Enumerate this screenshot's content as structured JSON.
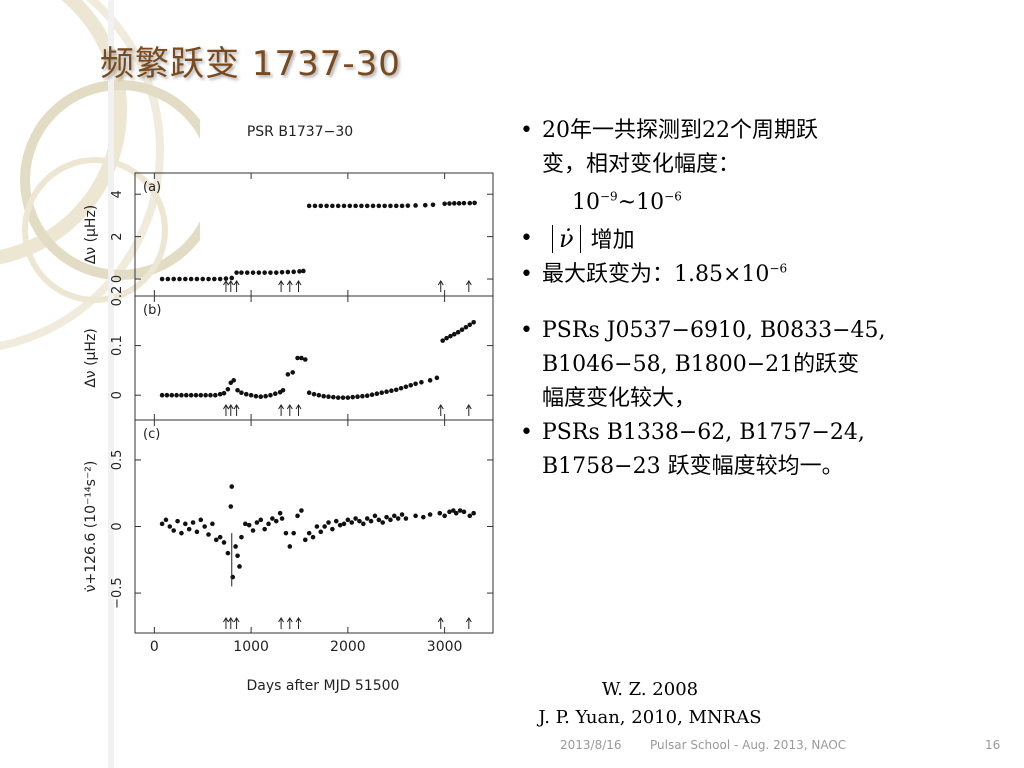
{
  "slide": {
    "title": "频繁跃变 1737-30",
    "footer_date": "2013/8/16",
    "footer_center": "Pulsar School  - Aug. 2013, NAOC",
    "page_number": "16"
  },
  "bullets": [
    {
      "text_a": "20年一共探测到22个周期跃",
      "text_b": "变，相对变化幅度："
    },
    {
      "range_base1": "10",
      "range_exp1": "−9",
      "range_sep": "~10",
      "range_exp2": "−6"
    },
    {
      "symbol": "ν̇",
      "text": "增加"
    },
    {
      "text": "最大跃变为：",
      "value": "1.85×10",
      "exp": "−6"
    },
    {
      "lines": [
        "PSRs J0537−6910, B0833−45,",
        "B1046−58, B1800−21的跃变",
        "幅度变化较大，"
      ]
    },
    {
      "lines": [
        "PSRs B1338−62, B1757−24,",
        "B1758−23 跃变幅度较均一。"
      ]
    }
  ],
  "references": [
    "W. Z. 2008",
    "J. P. Yuan, 2010, MNRAS"
  ],
  "chart_data": [
    {
      "type": "scatter",
      "title": "PSR B1737−30",
      "panel_label": "(a)",
      "xlabel": "Days after MJD 51500",
      "ylabel": "Δν (μHz)",
      "xlim": [
        -200,
        3500
      ],
      "ylim": [
        -0.8,
        5
      ],
      "xticks": [
        "0",
        "1000",
        "2000",
        "3000"
      ],
      "yticks": [
        "0",
        "2",
        "4"
      ],
      "series": [
        {
          "points": [
            [
              80,
              0
            ],
            [
              140,
              0
            ],
            [
              200,
              0
            ],
            [
              260,
              0
            ],
            [
              320,
              0
            ],
            [
              380,
              0
            ],
            [
              440,
              0
            ],
            [
              500,
              0
            ],
            [
              560,
              0
            ],
            [
              620,
              0
            ],
            [
              680,
              0
            ],
            [
              740,
              0.02
            ],
            [
              800,
              0.05
            ],
            [
              850,
              0.3
            ],
            [
              900,
              0.3
            ],
            [
              960,
              0.3
            ],
            [
              1020,
              0.3
            ],
            [
              1080,
              0.3
            ],
            [
              1140,
              0.3
            ],
            [
              1200,
              0.3
            ],
            [
              1260,
              0.3
            ],
            [
              1320,
              0.32
            ],
            [
              1380,
              0.33
            ],
            [
              1440,
              0.34
            ],
            [
              1500,
              0.36
            ],
            [
              1540,
              0.38
            ],
            [
              1600,
              3.45
            ],
            [
              1660,
              3.45
            ],
            [
              1720,
              3.45
            ],
            [
              1780,
              3.45
            ],
            [
              1840,
              3.45
            ],
            [
              1900,
              3.45
            ],
            [
              1960,
              3.45
            ],
            [
              2020,
              3.45
            ],
            [
              2080,
              3.45
            ],
            [
              2140,
              3.45
            ],
            [
              2200,
              3.45
            ],
            [
              2260,
              3.45
            ],
            [
              2320,
              3.45
            ],
            [
              2380,
              3.45
            ],
            [
              2440,
              3.45
            ],
            [
              2500,
              3.45
            ],
            [
              2560,
              3.45
            ],
            [
              2620,
              3.46
            ],
            [
              2700,
              3.47
            ],
            [
              2800,
              3.48
            ],
            [
              2880,
              3.5
            ],
            [
              3000,
              3.55
            ],
            [
              3050,
              3.56
            ],
            [
              3100,
              3.57
            ],
            [
              3150,
              3.57
            ],
            [
              3200,
              3.58
            ],
            [
              3260,
              3.58
            ],
            [
              3310,
              3.59
            ]
          ]
        }
      ],
      "glitch_markers": [
        740,
        790,
        850,
        1310,
        1400,
        1490,
        2960,
        3250
      ]
    },
    {
      "type": "scatter",
      "panel_label": "(b)",
      "ylabel": "Δν (μHz)",
      "xlim": [
        -200,
        3500
      ],
      "ylim": [
        -0.05,
        0.2
      ],
      "yticks": [
        "0",
        "0.1",
        "0.2"
      ],
      "series": [
        {
          "points": [
            [
              80,
              0
            ],
            [
              130,
              0
            ],
            [
              180,
              0
            ],
            [
              230,
              0
            ],
            [
              280,
              0
            ],
            [
              330,
              0
            ],
            [
              380,
              0
            ],
            [
              430,
              0
            ],
            [
              480,
              0
            ],
            [
              530,
              0
            ],
            [
              580,
              0
            ],
            [
              630,
              0
            ],
            [
              680,
              0.002
            ],
            [
              720,
              0.004
            ],
            [
              760,
              0.012
            ],
            [
              790,
              0.025
            ],
            [
              820,
              0.03
            ],
            [
              860,
              0.01
            ],
            [
              900,
              0.005
            ],
            [
              950,
              0.002
            ],
            [
              1000,
              0
            ],
            [
              1050,
              -0.002
            ],
            [
              1100,
              -0.003
            ],
            [
              1150,
              -0.002
            ],
            [
              1200,
              0
            ],
            [
              1250,
              0.003
            ],
            [
              1300,
              0.006
            ],
            [
              1330,
              0.01
            ],
            [
              1380,
              0.042
            ],
            [
              1430,
              0.046
            ],
            [
              1480,
              0.075
            ],
            [
              1520,
              0.075
            ],
            [
              1560,
              0.072
            ],
            [
              1600,
              0.005
            ],
            [
              1650,
              0.002
            ],
            [
              1700,
              0
            ],
            [
              1750,
              -0.002
            ],
            [
              1800,
              -0.003
            ],
            [
              1850,
              -0.004
            ],
            [
              1900,
              -0.005
            ],
            [
              1950,
              -0.005
            ],
            [
              2000,
              -0.005
            ],
            [
              2050,
              -0.004
            ],
            [
              2100,
              -0.003
            ],
            [
              2150,
              -0.002
            ],
            [
              2200,
              -0.001
            ],
            [
              2250,
              0.001
            ],
            [
              2300,
              0.003
            ],
            [
              2350,
              0.005
            ],
            [
              2400,
              0.007
            ],
            [
              2450,
              0.009
            ],
            [
              2500,
              0.011
            ],
            [
              2550,
              0.014
            ],
            [
              2600,
              0.017
            ],
            [
              2650,
              0.02
            ],
            [
              2700,
              0.023
            ],
            [
              2760,
              0.026
            ],
            [
              2850,
              0.03
            ],
            [
              2920,
              0.035
            ],
            [
              2980,
              0.11
            ],
            [
              3020,
              0.115
            ],
            [
              3060,
              0.119
            ],
            [
              3100,
              0.123
            ],
            [
              3140,
              0.127
            ],
            [
              3180,
              0.132
            ],
            [
              3220,
              0.137
            ],
            [
              3260,
              0.142
            ],
            [
              3300,
              0.147
            ]
          ]
        }
      ],
      "glitch_markers": [
        740,
        790,
        850,
        1310,
        1400,
        1490,
        2960,
        3250
      ]
    },
    {
      "type": "scatter",
      "panel_label": "(c)",
      "ylabel": "ν̇+126.6 (10⁻¹⁴s⁻²)",
      "xlim": [
        -200,
        3500
      ],
      "ylim": [
        -0.8,
        0.8
      ],
      "yticks": [
        "−0.5",
        "0",
        "0.5"
      ],
      "series": [
        {
          "points": [
            [
              80,
              0.02
            ],
            [
              120,
              0.05
            ],
            [
              160,
              0
            ],
            [
              200,
              -0.03
            ],
            [
              240,
              0.04
            ],
            [
              280,
              -0.05
            ],
            [
              320,
              0.02
            ],
            [
              360,
              -0.02
            ],
            [
              400,
              0.03
            ],
            [
              440,
              -0.04
            ],
            [
              480,
              0.05
            ],
            [
              520,
              0
            ],
            [
              560,
              -0.06
            ],
            [
              600,
              0.02
            ],
            [
              640,
              -0.1
            ],
            [
              680,
              -0.08
            ],
            [
              720,
              -0.12
            ],
            [
              760,
              -0.2
            ],
            [
              790,
              0.15
            ],
            [
              800,
              0.3
            ],
            [
              810,
              -0.38
            ],
            [
              840,
              -0.15
            ],
            [
              860,
              -0.22
            ],
            [
              880,
              -0.3
            ],
            [
              900,
              -0.08
            ],
            [
              940,
              0.02
            ],
            [
              980,
              0.01
            ],
            [
              1020,
              -0.03
            ],
            [
              1060,
              0.03
            ],
            [
              1100,
              0.05
            ],
            [
              1140,
              -0.02
            ],
            [
              1180,
              0.02
            ],
            [
              1220,
              0.06
            ],
            [
              1260,
              0.04
            ],
            [
              1300,
              0.1
            ],
            [
              1320,
              0.06
            ],
            [
              1360,
              -0.05
            ],
            [
              1400,
              -0.15
            ],
            [
              1440,
              -0.05
            ],
            [
              1480,
              0.08
            ],
            [
              1520,
              0.12
            ],
            [
              1560,
              -0.1
            ],
            [
              1600,
              -0.05
            ],
            [
              1640,
              -0.08
            ],
            [
              1680,
              0
            ],
            [
              1720,
              -0.04
            ],
            [
              1760,
              0
            ],
            [
              1800,
              0.03
            ],
            [
              1840,
              -0.02
            ],
            [
              1880,
              0.04
            ],
            [
              1920,
              0.01
            ],
            [
              1960,
              0.02
            ],
            [
              2000,
              0.05
            ],
            [
              2040,
              0.03
            ],
            [
              2080,
              0.06
            ],
            [
              2120,
              0.04
            ],
            [
              2160,
              0.02
            ],
            [
              2200,
              0.06
            ],
            [
              2240,
              0.04
            ],
            [
              2280,
              0.08
            ],
            [
              2320,
              0.05
            ],
            [
              2360,
              0.03
            ],
            [
              2400,
              0.07
            ],
            [
              2440,
              0.05
            ],
            [
              2480,
              0.08
            ],
            [
              2520,
              0.06
            ],
            [
              2560,
              0.09
            ],
            [
              2600,
              0.06
            ],
            [
              2700,
              0.08
            ],
            [
              2780,
              0.07
            ],
            [
              2850,
              0.09
            ],
            [
              2950,
              0.1
            ],
            [
              3000,
              0.08
            ],
            [
              3050,
              0.11
            ],
            [
              3090,
              0.12
            ],
            [
              3120,
              0.1
            ],
            [
              3160,
              0.12
            ],
            [
              3200,
              0.11
            ],
            [
              3260,
              0.08
            ],
            [
              3300,
              0.1
            ]
          ]
        }
      ],
      "glitch_markers": [
        740,
        790,
        850,
        1310,
        1400,
        1490,
        2960,
        3250
      ]
    }
  ]
}
